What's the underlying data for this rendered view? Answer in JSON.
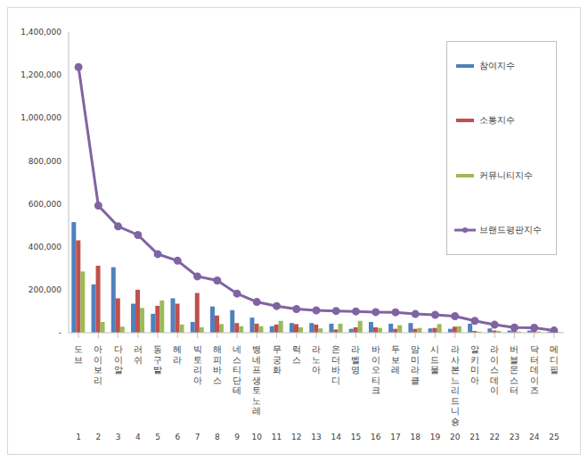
{
  "chart_data": {
    "type": "bar",
    "categories": [
      "도브",
      "아이보리",
      "다이알",
      "러쉬",
      "동구밭",
      "헤라",
      "빅토리아",
      "해피바스",
      "네스티단테",
      "뱅네프생토노레",
      "무궁화",
      "럭스",
      "라노아",
      "온더바디",
      "라벨영",
      "바이오티크",
      "두보레",
      "맘미라클",
      "시드물",
      "라사본느리드니숑",
      "알키미아",
      "라이스데이",
      "버블몬스터",
      "닥터데이즈",
      "메디필"
    ],
    "category_numbers": [
      1,
      2,
      3,
      4,
      5,
      6,
      7,
      8,
      9,
      10,
      11,
      12,
      13,
      14,
      15,
      16,
      17,
      18,
      19,
      20,
      21,
      22,
      23,
      24,
      25
    ],
    "series": [
      {
        "name": "참여지수",
        "color": "#4f81bd",
        "values": [
          515000,
          225000,
          305000,
          135000,
          88000,
          160000,
          50000,
          122000,
          105000,
          70000,
          30000,
          45000,
          45000,
          42000,
          18000,
          50000,
          42000,
          45000,
          20000,
          18000,
          42000,
          20000,
          10000,
          10000,
          5000
        ]
      },
      {
        "name": "소통지수",
        "color": "#c0504d",
        "values": [
          430000,
          312000,
          160000,
          200000,
          125000,
          135000,
          185000,
          80000,
          45000,
          42000,
          38000,
          40000,
          38000,
          15000,
          25000,
          25000,
          18000,
          18000,
          22000,
          28000,
          8000,
          10000,
          8000,
          8000,
          3000
        ]
      },
      {
        "name": "커뮤니티지수",
        "color": "#9bbb59",
        "values": [
          285000,
          50000,
          28000,
          115000,
          150000,
          38000,
          25000,
          40000,
          30000,
          30000,
          55000,
          25000,
          20000,
          42000,
          55000,
          22000,
          35000,
          22000,
          40000,
          30000,
          5000,
          8000,
          5000,
          5000,
          2000
        ]
      },
      {
        "name": "브랜드평판지수",
        "color": "#8064a2",
        "type": "line",
        "marker": "circle",
        "values": [
          1237000,
          592000,
          495000,
          455000,
          366000,
          335000,
          262000,
          243000,
          182000,
          143000,
          124000,
          110000,
          104000,
          101000,
          99000,
          96000,
          95000,
          87000,
          83000,
          77000,
          55000,
          37000,
          24000,
          23000,
          10000
        ]
      }
    ],
    "ylim": [
      0,
      1400000
    ],
    "yticks": [
      {
        "value": 0,
        "label": "-"
      },
      {
        "value": 200000,
        "label": "200,000"
      },
      {
        "value": 400000,
        "label": "400,000"
      },
      {
        "value": 600000,
        "label": "600,000"
      },
      {
        "value": 800000,
        "label": "800,000"
      },
      {
        "value": 1000000,
        "label": "1,000,000"
      },
      {
        "value": 1200000,
        "label": "1,200,000"
      },
      {
        "value": 1400000,
        "label": "1,400,000"
      }
    ],
    "grid": false,
    "legend": "right"
  }
}
